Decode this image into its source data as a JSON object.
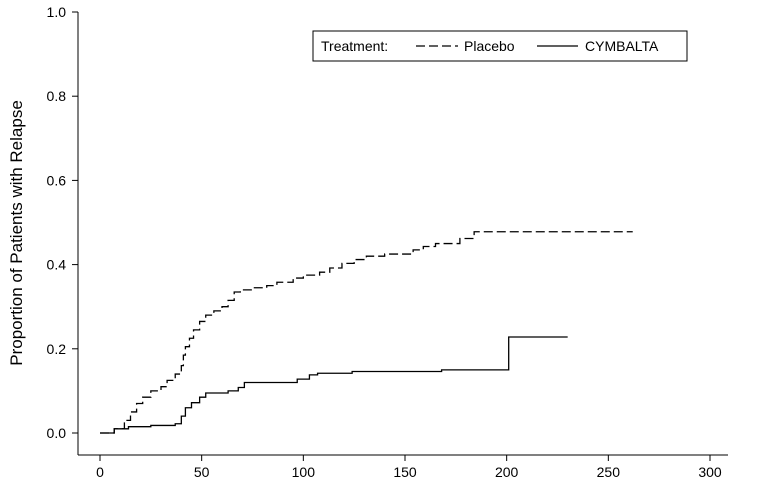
{
  "chart_data": {
    "type": "line",
    "title": "",
    "xlabel": "",
    "ylabel": "Proportion of Patients with Relapse",
    "xlim": [
      0,
      300
    ],
    "ylim": [
      0,
      1.0
    ],
    "x_ticks": [
      "0",
      "50",
      "100",
      "150",
      "200",
      "250",
      "300"
    ],
    "y_ticks": [
      "0.0",
      "0.2",
      "0.4",
      "0.6",
      "0.8",
      "1.0"
    ],
    "grid": false,
    "legend": {
      "placement": "top-right",
      "title": "Treatment:",
      "entries": [
        "Placebo",
        "CYMBALTA"
      ]
    },
    "series": [
      {
        "name": "Placebo",
        "style": "dashed",
        "color": "#000000",
        "points": [
          [
            0,
            0.0
          ],
          [
            7,
            0.0
          ],
          [
            7,
            0.01
          ],
          [
            12,
            0.01
          ],
          [
            12,
            0.03
          ],
          [
            15,
            0.03
          ],
          [
            15,
            0.05
          ],
          [
            18,
            0.05
          ],
          [
            18,
            0.07
          ],
          [
            21,
            0.07
          ],
          [
            21,
            0.085
          ],
          [
            25,
            0.085
          ],
          [
            25,
            0.1
          ],
          [
            30,
            0.1
          ],
          [
            30,
            0.11
          ],
          [
            33,
            0.11
          ],
          [
            33,
            0.125
          ],
          [
            37,
            0.125
          ],
          [
            37,
            0.14
          ],
          [
            40,
            0.14
          ],
          [
            40,
            0.16
          ],
          [
            41,
            0.16
          ],
          [
            41,
            0.185
          ],
          [
            42,
            0.185
          ],
          [
            42,
            0.205
          ],
          [
            44,
            0.205
          ],
          [
            44,
            0.225
          ],
          [
            46,
            0.225
          ],
          [
            46,
            0.245
          ],
          [
            49,
            0.245
          ],
          [
            49,
            0.265
          ],
          [
            52,
            0.265
          ],
          [
            52,
            0.28
          ],
          [
            56,
            0.28
          ],
          [
            56,
            0.29
          ],
          [
            60,
            0.29
          ],
          [
            60,
            0.3
          ],
          [
            63,
            0.3
          ],
          [
            63,
            0.315
          ],
          [
            66,
            0.315
          ],
          [
            66,
            0.335
          ],
          [
            69,
            0.335
          ],
          [
            69,
            0.34
          ],
          [
            75,
            0.34
          ],
          [
            75,
            0.345
          ],
          [
            82,
            0.345
          ],
          [
            82,
            0.35
          ],
          [
            87,
            0.35
          ],
          [
            87,
            0.358
          ],
          [
            95,
            0.358
          ],
          [
            95,
            0.368
          ],
          [
            100,
            0.368
          ],
          [
            100,
            0.375
          ],
          [
            108,
            0.375
          ],
          [
            108,
            0.382
          ],
          [
            113,
            0.382
          ],
          [
            113,
            0.392
          ],
          [
            119,
            0.392
          ],
          [
            119,
            0.403
          ],
          [
            125,
            0.403
          ],
          [
            125,
            0.412
          ],
          [
            131,
            0.412
          ],
          [
            131,
            0.42
          ],
          [
            140,
            0.42
          ],
          [
            140,
            0.425
          ],
          [
            154,
            0.425
          ],
          [
            154,
            0.435
          ],
          [
            159,
            0.435
          ],
          [
            159,
            0.443
          ],
          [
            165,
            0.443
          ],
          [
            165,
            0.45
          ],
          [
            177,
            0.45
          ],
          [
            177,
            0.462
          ],
          [
            184,
            0.462
          ],
          [
            184,
            0.478
          ],
          [
            262,
            0.478
          ]
        ]
      },
      {
        "name": "CYMBALTA",
        "style": "solid",
        "color": "#000000",
        "points": [
          [
            0,
            0.0
          ],
          [
            7,
            0.0
          ],
          [
            7,
            0.01
          ],
          [
            14,
            0.01
          ],
          [
            14,
            0.015
          ],
          [
            25,
            0.015
          ],
          [
            25,
            0.018
          ],
          [
            37,
            0.018
          ],
          [
            37,
            0.022
          ],
          [
            40,
            0.022
          ],
          [
            40,
            0.04
          ],
          [
            42,
            0.04
          ],
          [
            42,
            0.06
          ],
          [
            45,
            0.06
          ],
          [
            45,
            0.072
          ],
          [
            49,
            0.072
          ],
          [
            49,
            0.085
          ],
          [
            52,
            0.085
          ],
          [
            52,
            0.095
          ],
          [
            63,
            0.095
          ],
          [
            63,
            0.1
          ],
          [
            68,
            0.1
          ],
          [
            68,
            0.108
          ],
          [
            71,
            0.108
          ],
          [
            71,
            0.12
          ],
          [
            97,
            0.12
          ],
          [
            97,
            0.128
          ],
          [
            103,
            0.128
          ],
          [
            103,
            0.138
          ],
          [
            107,
            0.138
          ],
          [
            107,
            0.142
          ],
          [
            124,
            0.142
          ],
          [
            124,
            0.146
          ],
          [
            168,
            0.146
          ],
          [
            168,
            0.15
          ],
          [
            201,
            0.15
          ],
          [
            201,
            0.228
          ],
          [
            230,
            0.228
          ]
        ]
      }
    ]
  }
}
